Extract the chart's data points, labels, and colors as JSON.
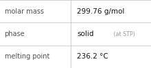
{
  "rows": [
    [
      "molar mass",
      "299.76 g/mol",
      null
    ],
    [
      "phase",
      "solid",
      " (at STP)"
    ],
    [
      "melting point",
      "236.2 °C",
      null
    ]
  ],
  "col_split": 0.47,
  "bg_color": "#ffffff",
  "border_color": "#bbbbbb",
  "label_color": "#505050",
  "value_color": "#111111",
  "suffix_color": "#999999",
  "label_fontsize": 7.0,
  "value_fontsize": 7.5,
  "suffix_fontsize": 5.8,
  "font_family": "DejaVu Sans"
}
